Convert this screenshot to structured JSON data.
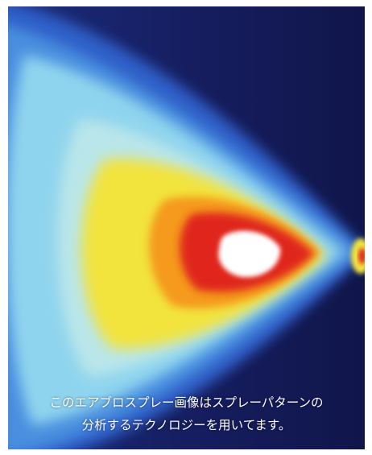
{
  "caption": {
    "line1": "このエアブロスプレー画像はスプレーパターンの",
    "line2": "分析するテクノロジーを用いてます。"
  },
  "colors": {
    "background": "#141a55",
    "outer_blue": "#3f7fd6",
    "cyan": "#8fd7ee",
    "yellow": "#f4e23a",
    "orange": "#f59a1f",
    "red": "#e0281c",
    "core": "#ffffff"
  }
}
